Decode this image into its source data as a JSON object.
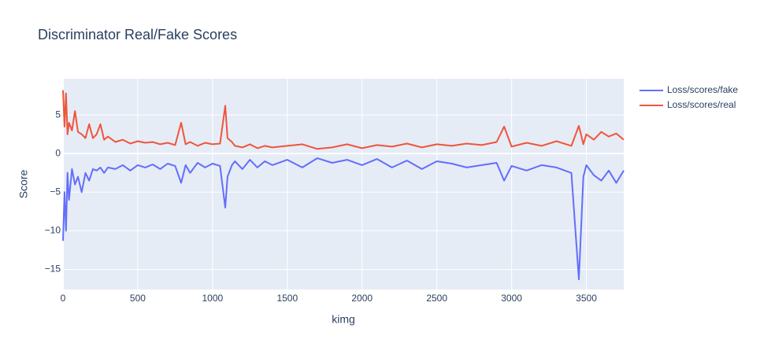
{
  "chart_data": {
    "type": "line",
    "title": "Discriminator Real/Fake Scores",
    "x_label": "kimg",
    "y_label": "Score",
    "x": [
      0,
      10,
      20,
      30,
      40,
      60,
      80,
      100,
      125,
      150,
      175,
      200,
      225,
      250,
      275,
      300,
      350,
      400,
      450,
      500,
      550,
      600,
      650,
      700,
      750,
      790,
      820,
      850,
      900,
      950,
      1000,
      1050,
      1085,
      1100,
      1130,
      1150,
      1200,
      1250,
      1300,
      1350,
      1400,
      1500,
      1600,
      1700,
      1800,
      1900,
      2000,
      2100,
      2200,
      2300,
      2400,
      2500,
      2600,
      2700,
      2800,
      2900,
      2950,
      3000,
      3100,
      3200,
      3300,
      3400,
      3450,
      3480,
      3500,
      3550,
      3600,
      3650,
      3700,
      3750
    ],
    "series": [
      {
        "name": "Loss/scores/fake",
        "color": "#636efa",
        "values": [
          -11.3,
          -5,
          -10,
          -2.5,
          -6,
          -2,
          -4,
          -3,
          -5,
          -2.5,
          -3.5,
          -2,
          -2.2,
          -1.8,
          -2.5,
          -1.8,
          -2,
          -1.5,
          -2.2,
          -1.5,
          -1.8,
          -1.4,
          -2,
          -1.3,
          -1.6,
          -3.8,
          -1.5,
          -2.5,
          -1.2,
          -1.8,
          -1.3,
          -1.6,
          -7,
          -3,
          -1.5,
          -1,
          -2,
          -0.8,
          -1.8,
          -1,
          -1.5,
          -0.8,
          -1.8,
          -0.6,
          -1.2,
          -0.8,
          -1.5,
          -0.7,
          -1.8,
          -0.9,
          -2,
          -1,
          -1.3,
          -1.8,
          -1.5,
          -1.2,
          -3.5,
          -1.6,
          -2.2,
          -1.5,
          -1.8,
          -2.5,
          -16.3,
          -3,
          -1.5,
          -2.8,
          -3.5,
          -2.2,
          -3.8,
          -2.2
        ]
      },
      {
        "name": "Loss/scores/real",
        "color": "#EF553B",
        "values": [
          8.2,
          3.5,
          7.8,
          2.5,
          4.0,
          3.0,
          5.5,
          2.8,
          2.5,
          2.0,
          3.8,
          2.0,
          2.5,
          3.8,
          1.8,
          2.2,
          1.5,
          1.8,
          1.3,
          1.6,
          1.4,
          1.5,
          1.2,
          1.4,
          1.1,
          4.0,
          1.2,
          1.5,
          1.0,
          1.4,
          1.2,
          1.3,
          6.2,
          2.0,
          1.5,
          1.0,
          0.8,
          1.2,
          0.7,
          1.0,
          0.8,
          1.0,
          1.2,
          0.6,
          0.8,
          1.2,
          0.7,
          1.1,
          0.9,
          1.3,
          0.8,
          1.2,
          1.0,
          1.3,
          1.1,
          1.5,
          3.5,
          0.9,
          1.4,
          1.0,
          1.6,
          1.0,
          3.6,
          1.2,
          2.5,
          1.8,
          2.8,
          2.2,
          2.6,
          1.8
        ]
      }
    ],
    "xlim": [
      0,
      3750
    ],
    "xticks": [
      0,
      500,
      1000,
      1500,
      2000,
      2500,
      3000,
      3500
    ],
    "ylim": [
      -17.6,
      9.7
    ],
    "yticks": [
      {
        "value": -15,
        "label": "−15"
      },
      {
        "value": -10,
        "label": "−10"
      },
      {
        "value": -5,
        "label": "−5"
      },
      0,
      5
    ],
    "grid": true,
    "legend": "right"
  }
}
